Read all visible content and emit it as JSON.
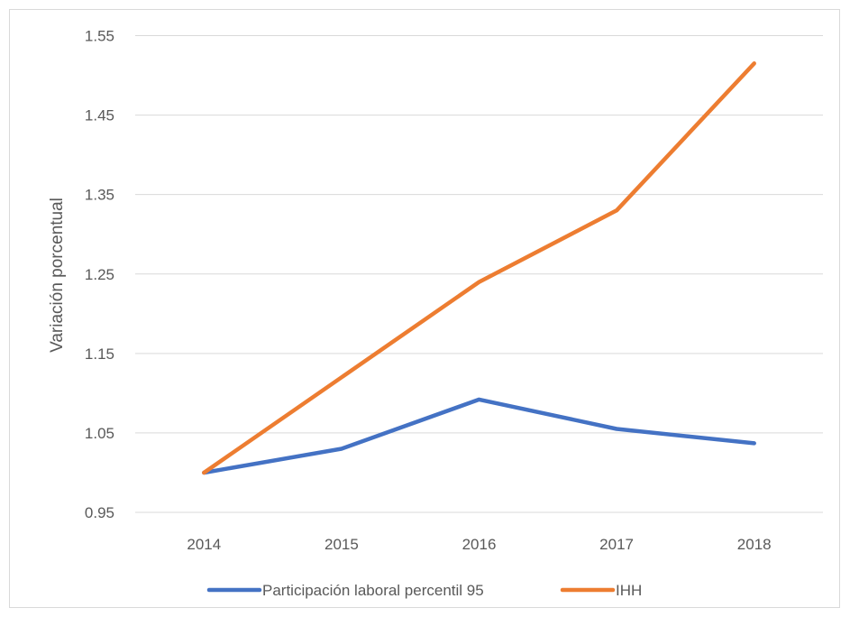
{
  "chart_data": {
    "type": "line",
    "categories": [
      "2014",
      "2015",
      "2016",
      "2017",
      "2018"
    ],
    "series": [
      {
        "name": "Participación laboral percentil 95",
        "color": "#4472C4",
        "values": [
          1.0,
          1.03,
          1.092,
          1.055,
          1.037
        ]
      },
      {
        "name": "IHH",
        "color": "#ED7D31",
        "values": [
          1.0,
          1.12,
          1.24,
          1.33,
          1.515
        ]
      }
    ],
    "title": "",
    "xlabel": "",
    "ylabel": "Variación porcentual",
    "ylim": [
      0.95,
      1.55
    ],
    "yticks": [
      "0.95",
      "1.05",
      "1.15",
      "1.25",
      "1.35",
      "1.45",
      "1.55"
    ],
    "grid": true,
    "legend_position": "bottom"
  }
}
